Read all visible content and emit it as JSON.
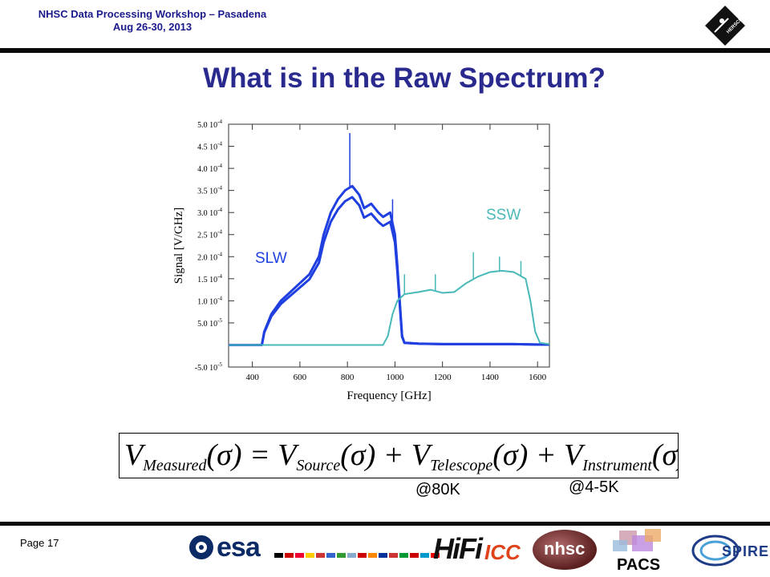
{
  "header": {
    "line1": "NHSC Data Processing Workshop – Pasadena",
    "line2": "Aug 26-30, 2013"
  },
  "herschel_logo": {
    "text": "HERSCHEL"
  },
  "title": "What is in the Raw Spectrum?",
  "chart_data": {
    "type": "line",
    "xlabel": "Frequency [GHz]",
    "ylabel": "Signal [V/GHz]",
    "xlim": [
      300,
      1650
    ],
    "ylim": [
      -5e-05,
      0.0005
    ],
    "xticks": [
      "400",
      "600",
      "800",
      "1000",
      "1200",
      "1400",
      "1600"
    ],
    "yticks": [
      "-5.0 10",
      "5.0 10",
      "1.0 10",
      "1.5 10",
      "2.0 10",
      "2.5 10",
      "3.0 10",
      "3.5 10",
      "4.0 10",
      "4.5 10",
      "5.0 10"
    ],
    "yticks_exp": [
      "-5",
      "-5",
      "-4",
      "-4",
      "-4",
      "-4",
      "-4",
      "-4",
      "-4",
      "-4",
      "-4"
    ],
    "ytick_values": [
      -5e-05,
      5e-05,
      0.0001,
      0.00015,
      0.0002,
      0.00025,
      0.0003,
      0.00035,
      0.0004,
      0.00045,
      0.0005
    ],
    "grid": false,
    "series": [
      {
        "name": "SLW",
        "color": "#1f3fe0",
        "x": [
          300,
          440,
          450,
          480,
          520,
          560,
          600,
          640,
          680,
          700,
          730,
          760,
          790,
          820,
          850,
          870,
          900,
          930,
          950,
          980,
          1000,
          1010,
          1020,
          1030,
          1040,
          1100,
          1200,
          1300,
          1400,
          1500,
          1600,
          1650
        ],
        "y": [
          0.0,
          0.0,
          3e-05,
          7e-05,
          0.0001,
          0.00012,
          0.00014,
          0.00016,
          0.0002,
          0.00025,
          0.0003,
          0.00033,
          0.00035,
          0.00036,
          0.00034,
          0.00031,
          0.00032,
          0.0003,
          0.00029,
          0.0003,
          0.00025,
          0.00018,
          0.0001,
          2e-05,
          5e-06,
          3e-06,
          2e-06,
          2e-06,
          2e-06,
          2e-06,
          1e-06,
          1e-06
        ],
        "spikes": [
          {
            "x": 810,
            "y": 0.00048
          },
          {
            "x": 990,
            "y": 0.00033
          }
        ]
      },
      {
        "name": "SSW",
        "color": "#48b8b8",
        "x": [
          300,
          900,
          950,
          970,
          990,
          1010,
          1040,
          1100,
          1150,
          1200,
          1250,
          1300,
          1350,
          1400,
          1450,
          1500,
          1550,
          1570,
          1590,
          1610,
          1650
        ],
        "y": [
          0.0,
          0.0,
          0.0,
          2e-05,
          7e-05,
          0.0001,
          0.000115,
          0.00012,
          0.000125,
          0.000118,
          0.00012,
          0.00014,
          0.000155,
          0.000165,
          0.000168,
          0.000165,
          0.00015,
          0.0001,
          3e-05,
          5e-06,
          2e-06
        ],
        "spikes": [
          {
            "x": 1040,
            "y": 0.00016
          },
          {
            "x": 1170,
            "y": 0.00016
          },
          {
            "x": 1330,
            "y": 0.00021
          },
          {
            "x": 1440,
            "y": 0.0002
          },
          {
            "x": 1530,
            "y": 0.00019
          }
        ]
      }
    ]
  },
  "equation": {
    "V": "V",
    "measured": "Measured",
    "source": "Source",
    "telescope": "Telescope",
    "instrument": "Instrument",
    "arg": "(σ)",
    "eq": " = ",
    "plus": " + "
  },
  "annotations": {
    "telescope_temp": "@80K",
    "instrument_temp": "@4-5K"
  },
  "footer": {
    "page": "Page 17",
    "esa": "esa",
    "hifi": "HiFi",
    "icc": "ICC",
    "nhsc": "nhsc",
    "pacs": "PACS",
    "spire": "SPIRE"
  }
}
